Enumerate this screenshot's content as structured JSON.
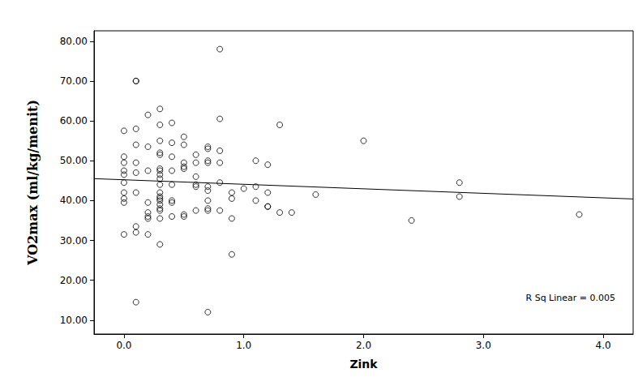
{
  "chart_data": {
    "type": "scatter",
    "x_label": "Zink",
    "y_label": "VO2max (ml/kg/menit)",
    "annotation": "R Sq Linear = 0.005",
    "color": "#000000",
    "marker": "circle_open",
    "grid": false,
    "xlim": [
      -0.25,
      4.25
    ],
    "ylim": [
      6.5,
      82.6
    ],
    "xticks": [
      {
        "value": 0,
        "label": "0.0"
      },
      {
        "value": 1,
        "label": "1.0"
      },
      {
        "value": 2,
        "label": "2.0"
      },
      {
        "value": 3,
        "label": "3.0"
      },
      {
        "value": 4,
        "label": "4.0"
      }
    ],
    "yticks": [
      {
        "value": 10,
        "label": "10.00"
      },
      {
        "value": 20,
        "label": "20.00"
      },
      {
        "value": 30,
        "label": "30.00"
      },
      {
        "value": 40,
        "label": "40.00"
      },
      {
        "value": 50,
        "label": "50.00"
      },
      {
        "value": 60,
        "label": "60.00"
      },
      {
        "value": 70,
        "label": "70.00"
      },
      {
        "value": 80,
        "label": "80.00"
      }
    ],
    "x": [
      0,
      0,
      0,
      0,
      0,
      0,
      0,
      0,
      0,
      0,
      0.1,
      0.1,
      0.1,
      0.1,
      0.1,
      0.1,
      0.1,
      0.1,
      0.1,
      0.1,
      0.2,
      0.2,
      0.2,
      0.2,
      0.2,
      0.2,
      0.2,
      0.2,
      0.3,
      0.3,
      0.3,
      0.3,
      0.3,
      0.3,
      0.3,
      0.3,
      0.3,
      0.3,
      0.3,
      0.3,
      0.3,
      0.3,
      0.3,
      0.3,
      0.3,
      0.3,
      0.3,
      0.4,
      0.4,
      0.4,
      0.4,
      0.4,
      0.4,
      0.4,
      0.4,
      0.5,
      0.5,
      0.5,
      0.5,
      0.5,
      0.5,
      0.5,
      0.6,
      0.6,
      0.6,
      0.6,
      0.6,
      0.6,
      0.7,
      0.7,
      0.7,
      0.7,
      0.7,
      0.7,
      0.7,
      0.7,
      0.7,
      0.7,
      0.8,
      0.8,
      0.8,
      0.8,
      0.8,
      0.8,
      0.9,
      0.9,
      0.9,
      0.9,
      1.0,
      1.1,
      1.1,
      1.1,
      1.2,
      1.2,
      1.2,
      1.2,
      1.3,
      1.3,
      1.4,
      1.6,
      2.0,
      2.4,
      2.8,
      2.8,
      3.8
    ],
    "values": [
      57.5,
      51,
      49.5,
      47.5,
      46.5,
      44.5,
      42,
      40.5,
      39.5,
      31.5,
      70,
      70,
      58,
      54,
      49.5,
      47,
      42,
      33.5,
      32,
      14.5,
      61.5,
      53.5,
      47.5,
      39.5,
      37,
      36,
      35.5,
      31.5,
      63,
      59,
      55,
      52,
      51.5,
      48,
      47.5,
      46.5,
      45.5,
      44,
      42,
      41,
      40.5,
      40,
      39,
      38,
      37.5,
      35.5,
      29,
      59.5,
      54.5,
      51,
      47.5,
      44,
      40,
      39.5,
      36,
      56,
      54,
      49.5,
      48.5,
      48,
      36.5,
      36,
      51.5,
      49.5,
      46,
      44,
      43.5,
      37.5,
      53.5,
      53,
      50,
      49.5,
      43.5,
      42.5,
      40,
      38,
      37.5,
      12,
      78,
      60.5,
      52.5,
      49.5,
      44.5,
      37.5,
      42,
      40.5,
      35.5,
      26.5,
      43,
      50,
      43.5,
      40,
      49,
      42,
      38.5,
      38.5,
      59,
      37,
      37,
      41.5,
      55,
      35,
      44.5,
      41,
      36.5
    ],
    "trend_line": {
      "x": [
        -0.25,
        4.25
      ],
      "values": [
        45.5,
        40.4
      ]
    }
  }
}
